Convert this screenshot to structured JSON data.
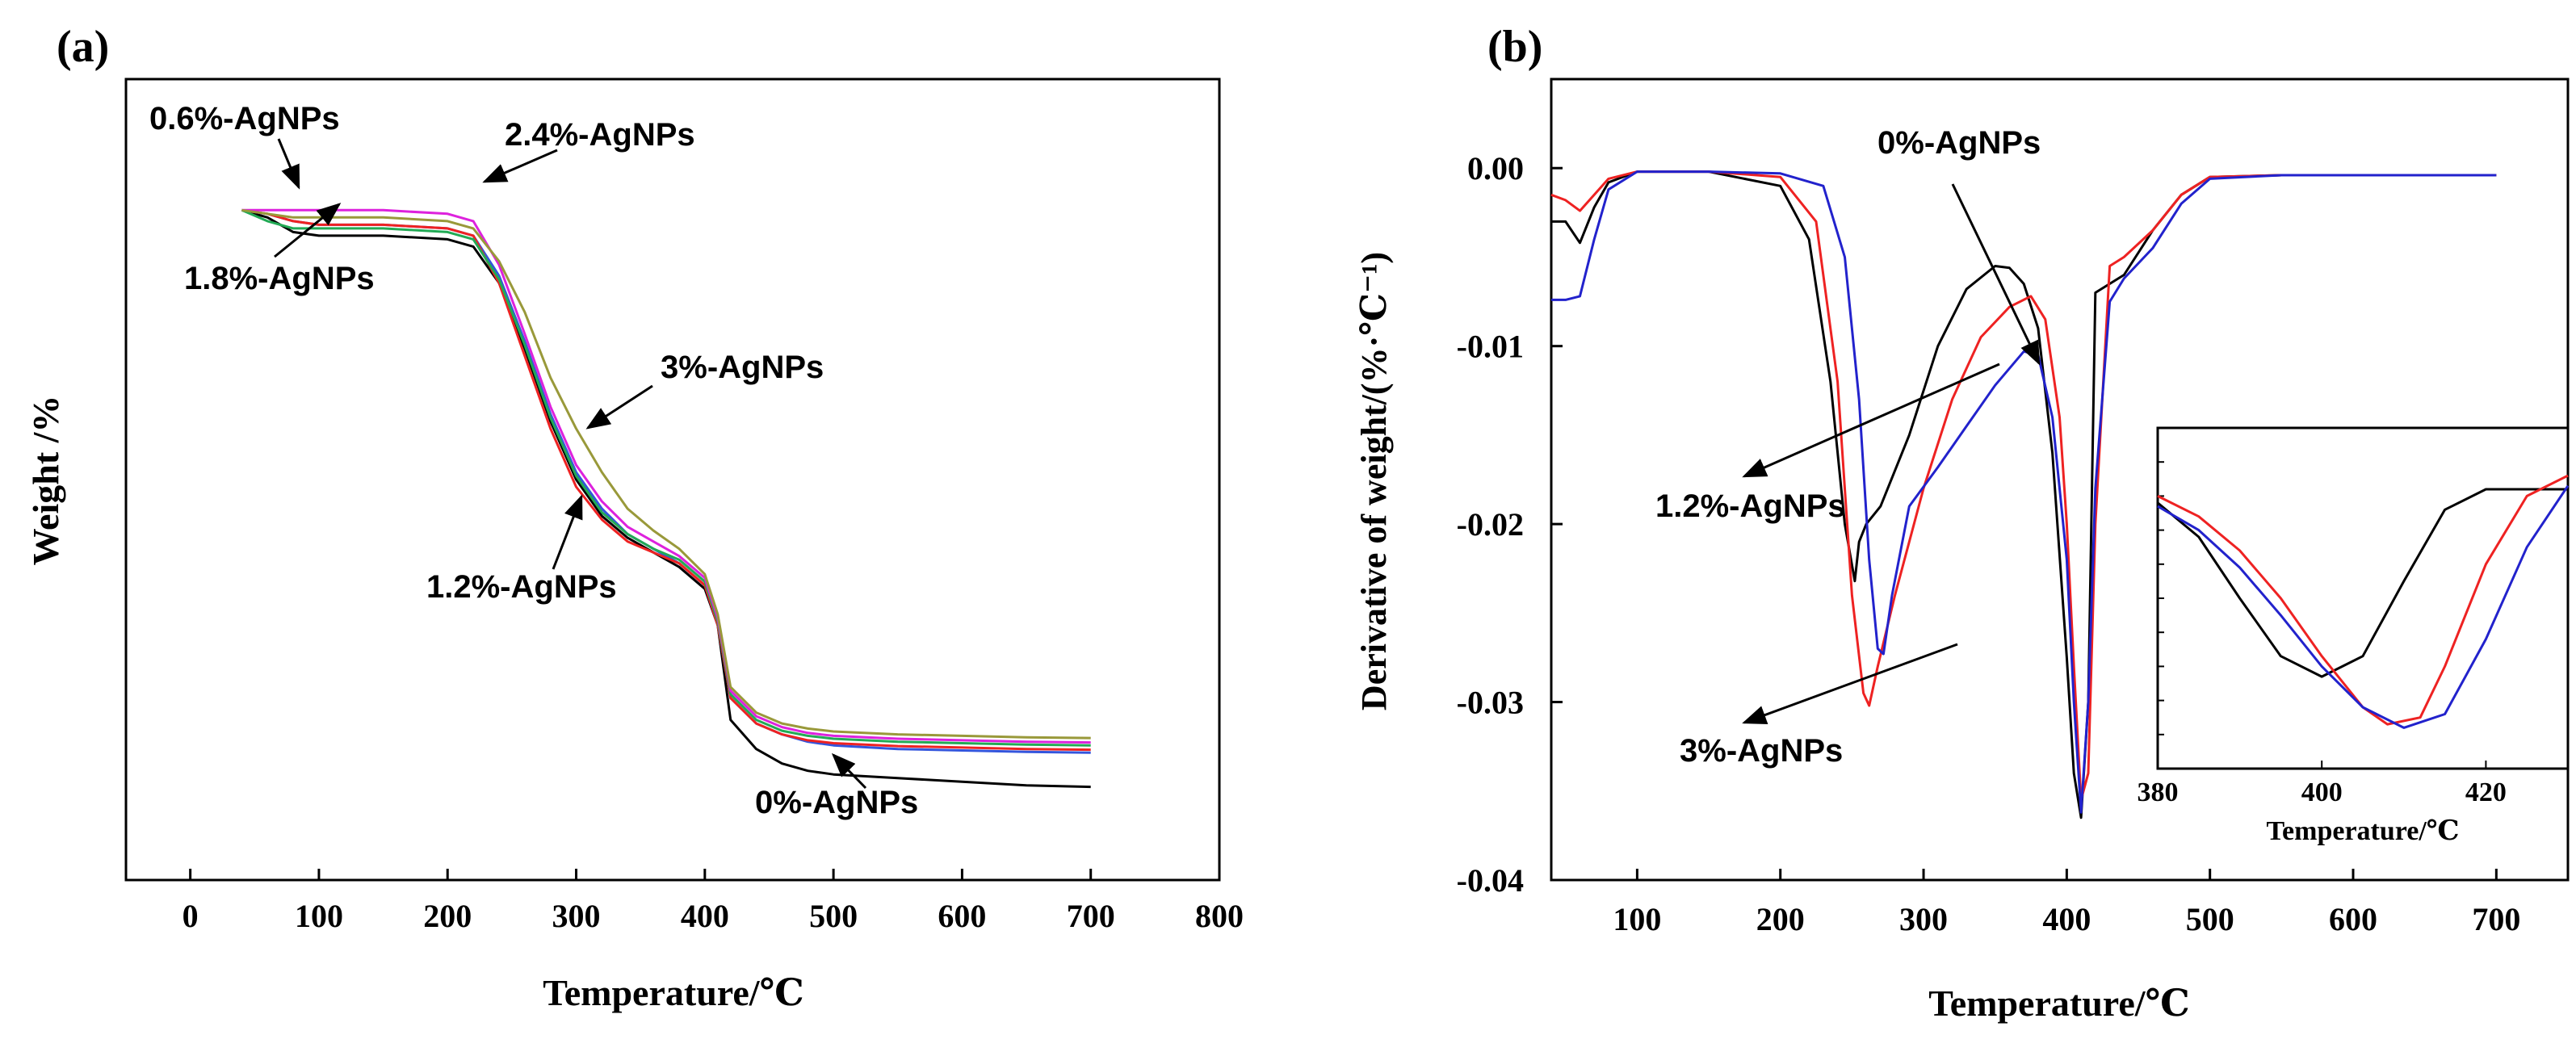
{
  "chart_data": [
    {
      "panel_label": "(a)",
      "type": "line",
      "title": "",
      "xlabel": "Temperature/℃",
      "ylabel": "Weight /%",
      "xlim": [
        -50,
        800
      ],
      "xticks": [
        "0",
        "100",
        "200",
        "300",
        "400",
        "500",
        "600",
        "700",
        "800"
      ],
      "yticks": [],
      "ylim": [
        0,
        110
      ],
      "series": [
        {
          "name": "0%-AgNPs",
          "color": "#000000",
          "x": [
            40,
            60,
            80,
            100,
            150,
            200,
            220,
            240,
            260,
            280,
            300,
            320,
            340,
            360,
            380,
            400,
            410,
            420,
            440,
            460,
            480,
            500,
            550,
            600,
            650,
            700
          ],
          "y": [
            92,
            91,
            89,
            88.5,
            88.5,
            88,
            87,
            82,
            73,
            63,
            55,
            50,
            47,
            45,
            43,
            40,
            35,
            22,
            18,
            16,
            15,
            14.5,
            14,
            13.5,
            13,
            12.8
          ]
        },
        {
          "name": "0.6%-AgNPs",
          "color": "#3355dd",
          "x": [
            40,
            60,
            80,
            100,
            150,
            200,
            220,
            240,
            260,
            280,
            300,
            320,
            340,
            360,
            380,
            400,
            410,
            420,
            440,
            460,
            480,
            500,
            550,
            600,
            650,
            700
          ],
          "y": [
            92,
            91.5,
            90.5,
            90,
            90,
            89.5,
            88.5,
            83,
            74,
            64,
            56,
            51,
            47.5,
            45.5,
            43.5,
            40.5,
            35,
            25,
            21.5,
            20,
            19,
            18.5,
            18,
            17.8,
            17.6,
            17.5
          ]
        },
        {
          "name": "1.2%-AgNPs",
          "color": "#ee2222",
          "x": [
            40,
            60,
            80,
            100,
            150,
            200,
            220,
            240,
            260,
            280,
            300,
            320,
            340,
            360,
            380,
            400,
            410,
            420,
            440,
            460,
            480,
            500,
            550,
            600,
            650,
            700
          ],
          "y": [
            92,
            91.5,
            90.5,
            90,
            90,
            89.5,
            88.5,
            82,
            72,
            62,
            54,
            49.5,
            46.5,
            45,
            43.5,
            40.5,
            35,
            25,
            21.5,
            20,
            19.2,
            18.8,
            18.4,
            18.2,
            18,
            17.9
          ]
        },
        {
          "name": "1.8%-AgNPs",
          "color": "#22aa55",
          "x": [
            40,
            60,
            80,
            100,
            150,
            200,
            220,
            240,
            260,
            280,
            300,
            320,
            340,
            360,
            380,
            400,
            410,
            420,
            440,
            460,
            480,
            500,
            550,
            600,
            650,
            700
          ],
          "y": [
            92,
            90.5,
            89.5,
            89.5,
            89.5,
            89,
            88,
            82.5,
            73.5,
            63.5,
            55.5,
            50.5,
            47.5,
            45.5,
            44,
            41,
            35.5,
            25.5,
            22,
            20.5,
            19.8,
            19.4,
            19,
            18.8,
            18.6,
            18.5
          ]
        },
        {
          "name": "2.4%-AgNPs",
          "color": "#dd22dd",
          "x": [
            40,
            60,
            80,
            100,
            150,
            200,
            220,
            240,
            260,
            280,
            300,
            320,
            340,
            360,
            380,
            400,
            410,
            420,
            440,
            460,
            480,
            500,
            550,
            600,
            650,
            700
          ],
          "y": [
            92,
            92,
            92,
            92,
            92,
            91.5,
            90.5,
            84.5,
            75,
            65,
            57,
            52,
            48.5,
            46.5,
            44.5,
            41.5,
            36,
            26,
            22.5,
            21,
            20.2,
            19.8,
            19.4,
            19.2,
            19,
            18.9
          ]
        },
        {
          "name": "3%-AgNPs",
          "color": "#99993a",
          "x": [
            40,
            60,
            80,
            100,
            150,
            200,
            220,
            240,
            260,
            280,
            300,
            320,
            340,
            360,
            380,
            400,
            410,
            420,
            440,
            460,
            480,
            500,
            550,
            600,
            650,
            700
          ],
          "y": [
            92,
            91.5,
            91,
            91,
            91,
            90.5,
            89.5,
            85,
            78,
            69,
            62,
            56,
            51,
            48,
            45.5,
            42,
            36.5,
            26.5,
            23,
            21.5,
            20.8,
            20.4,
            20,
            19.8,
            19.6,
            19.5
          ]
        }
      ],
      "annotations": [
        {
          "text": "0.6%-AgNPs",
          "target": "0.6%-AgNPs"
        },
        {
          "text": "2.4%-AgNPs",
          "target": "2.4%-AgNPs"
        },
        {
          "text": "1.8%-AgNPs",
          "target": "1.8%-AgNPs"
        },
        {
          "text": "3%-AgNPs",
          "target": "3%-AgNPs"
        },
        {
          "text": "1.2%-AgNPs",
          "target": "1.2%-AgNPs"
        },
        {
          "text": "0%-AgNPs",
          "target": "0%-AgNPs"
        }
      ]
    },
    {
      "panel_label": "(b)",
      "type": "line",
      "title": "",
      "xlabel": "Temperature/℃",
      "ylabel": "Derivative of weight/(%·℃⁻¹)",
      "xlim": [
        40,
        750
      ],
      "ylim": [
        -0.04,
        0.005
      ],
      "xticks": [
        "100",
        "200",
        "300",
        "400",
        "500",
        "600",
        "700"
      ],
      "yticks": [
        "0.00",
        "-0.01",
        "-0.02",
        "-0.03",
        "-0.04"
      ],
      "series": [
        {
          "name": "0%-AgNPs",
          "color": "#000000",
          "x": [
            40,
            50,
            60,
            70,
            80,
            100,
            150,
            200,
            220,
            235,
            245,
            252,
            255,
            260,
            270,
            290,
            310,
            330,
            350,
            360,
            370,
            380,
            390,
            400,
            405,
            410,
            415,
            420,
            440,
            460,
            480,
            500,
            550,
            600,
            700
          ],
          "y": [
            -0.003,
            -0.003,
            -0.0042,
            -0.0022,
            -0.0008,
            -0.0002,
            -0.0002,
            -0.001,
            -0.004,
            -0.012,
            -0.02,
            -0.0232,
            -0.021,
            -0.02,
            -0.019,
            -0.015,
            -0.01,
            -0.0068,
            -0.0055,
            -0.0056,
            -0.0065,
            -0.009,
            -0.016,
            -0.0275,
            -0.034,
            -0.0365,
            -0.03,
            -0.007,
            -0.006,
            -0.0035,
            -0.0015,
            -0.0005,
            -0.0004,
            -0.0004,
            -0.0004
          ]
        },
        {
          "name": "1.2%-AgNPs",
          "color": "#ee2222",
          "x": [
            40,
            50,
            60,
            70,
            80,
            100,
            150,
            200,
            225,
            240,
            250,
            258,
            262,
            268,
            280,
            300,
            320,
            340,
            360,
            375,
            385,
            395,
            400,
            405,
            410,
            415,
            420,
            430,
            440,
            460,
            480,
            500,
            550,
            600,
            700
          ],
          "y": [
            -0.0015,
            -0.0018,
            -0.0024,
            -0.0015,
            -0.0006,
            -0.0002,
            -0.0002,
            -0.0005,
            -0.003,
            -0.012,
            -0.024,
            -0.0295,
            -0.0302,
            -0.028,
            -0.024,
            -0.018,
            -0.013,
            -0.0095,
            -0.0078,
            -0.0072,
            -0.0085,
            -0.014,
            -0.02,
            -0.028,
            -0.0355,
            -0.034,
            -0.02,
            -0.0055,
            -0.005,
            -0.0035,
            -0.0015,
            -0.0005,
            -0.0004,
            -0.0004,
            -0.0004
          ]
        },
        {
          "name": "3%-AgNPs",
          "color": "#2222cc",
          "x": [
            40,
            50,
            60,
            70,
            80,
            100,
            150,
            200,
            230,
            245,
            255,
            262,
            268,
            272,
            278,
            290,
            310,
            330,
            350,
            370,
            380,
            390,
            400,
            405,
            410,
            415,
            420,
            430,
            440,
            460,
            480,
            500,
            550,
            600,
            700
          ],
          "y": [
            -0.0074,
            -0.0074,
            -0.0072,
            -0.004,
            -0.0012,
            -0.0002,
            -0.0002,
            -0.0003,
            -0.001,
            -0.005,
            -0.013,
            -0.022,
            -0.027,
            -0.0273,
            -0.024,
            -0.019,
            -0.0168,
            -0.0145,
            -0.0122,
            -0.0103,
            -0.0105,
            -0.014,
            -0.022,
            -0.03,
            -0.0362,
            -0.03,
            -0.018,
            -0.0075,
            -0.0062,
            -0.0045,
            -0.002,
            -0.0006,
            -0.0004,
            -0.0004,
            -0.0004
          ]
        }
      ],
      "annotations": [
        {
          "text": "0%-AgNPs",
          "target": "0%-AgNPs"
        },
        {
          "text": "1.2%-AgNPs",
          "target": "1.2%-AgNPs"
        },
        {
          "text": "3%-AgNPs",
          "target": "3%-AgNPs"
        }
      ],
      "inset": {
        "xlabel": "Temperature/℃",
        "xlim": [
          380,
          430
        ],
        "ylim": [
          0,
          1
        ],
        "xticks": [
          "380",
          "400",
          "420"
        ],
        "series": [
          {
            "name": "0%-AgNPs",
            "color": "#000000",
            "x": [
              380,
              385,
              390,
              395,
              400,
              405,
              410,
              415,
              420,
              425,
              430
            ],
            "y": [
              0.78,
              0.68,
              0.5,
              0.33,
              0.27,
              0.33,
              0.55,
              0.76,
              0.82,
              0.82,
              0.82
            ]
          },
          {
            "name": "1.2%-AgNPs",
            "color": "#ee2222",
            "x": [
              380,
              385,
              390,
              395,
              400,
              405,
              408,
              412,
              415,
              420,
              425,
              430
            ],
            "y": [
              0.8,
              0.74,
              0.64,
              0.5,
              0.33,
              0.18,
              0.13,
              0.15,
              0.3,
              0.6,
              0.8,
              0.86
            ]
          },
          {
            "name": "3%-AgNPs",
            "color": "#2222cc",
            "x": [
              380,
              385,
              390,
              395,
              400,
              405,
              410,
              415,
              420,
              425,
              430
            ],
            "y": [
              0.77,
              0.7,
              0.59,
              0.45,
              0.3,
              0.18,
              0.12,
              0.16,
              0.38,
              0.65,
              0.83
            ]
          }
        ]
      }
    }
  ]
}
